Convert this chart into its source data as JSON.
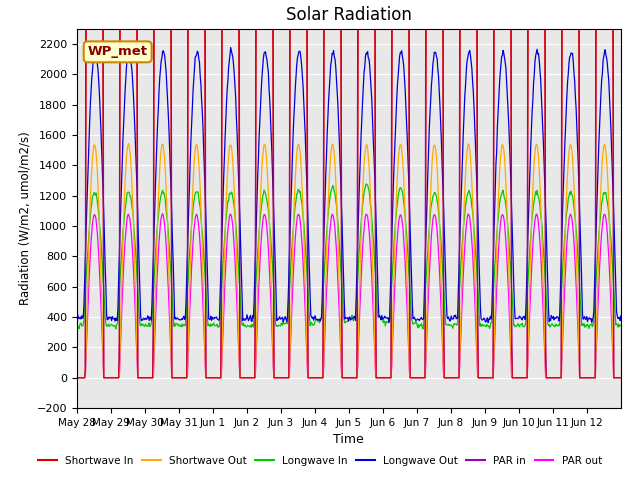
{
  "title": "Solar Radiation",
  "ylabel": "Radiation (W/m2, umol/m2/s)",
  "xlabel": "Time",
  "ylim": [
    -200,
    2300
  ],
  "yticks": [
    -200,
    0,
    200,
    400,
    600,
    800,
    1000,
    1200,
    1400,
    1600,
    1800,
    2000,
    2200
  ],
  "bg_color": "#e8e8e8",
  "fig_color": "#ffffff",
  "annotation_text": "WP_met",
  "annotation_bg": "#ffffcc",
  "annotation_edge": "#cc8800",
  "annotation_text_color": "#880000",
  "series_colors": {
    "shortwave_in": "#dd0000",
    "shortwave_out": "#ffaa00",
    "longwave_in": "#00cc00",
    "longwave_out": "#0000dd",
    "par_in": "#9900bb",
    "par_out": "#ff00ff"
  },
  "legend_labels": [
    "Shortwave In",
    "Shortwave Out",
    "Longwave In",
    "Longwave Out",
    "PAR in",
    "PAR out"
  ],
  "n_days": 16,
  "tick_labels": [
    "May 28",
    "May 29",
    "May 30",
    "May 31",
    "Jun 1",
    "Jun 2",
    "Jun 3",
    "Jun 4",
    "Jun 5",
    "Jun 6",
    "Jun 7",
    "Jun 8",
    "Jun 9",
    "Jun 10",
    "Jun 11",
    "Jun 12"
  ]
}
